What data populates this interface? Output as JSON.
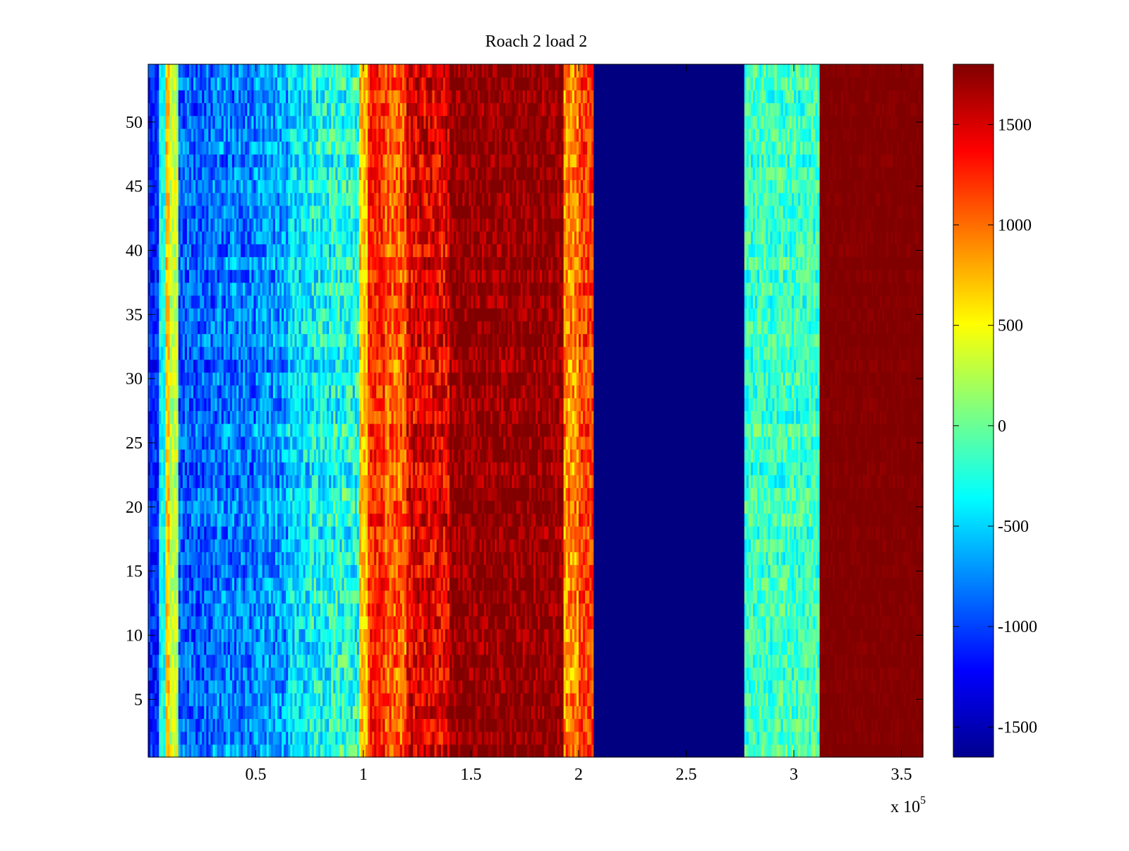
{
  "chart_data": {
    "type": "heatmap",
    "title": "Roach 2 load 2",
    "xlabel": "",
    "ylabel": "",
    "x_multiplier": "x 10",
    "x_multiplier_exponent": "5",
    "xlim": [
      0,
      360000
    ],
    "ylim": [
      0.5,
      54.5
    ],
    "x_ticks": [
      {
        "value": 50000,
        "label": "0.5"
      },
      {
        "value": 100000,
        "label": "1"
      },
      {
        "value": 150000,
        "label": "1.5"
      },
      {
        "value": 200000,
        "label": "2"
      },
      {
        "value": 250000,
        "label": "2.5"
      },
      {
        "value": 300000,
        "label": "3"
      },
      {
        "value": 350000,
        "label": "3.5"
      }
    ],
    "y_ticks": [
      {
        "value": 5,
        "label": "5"
      },
      {
        "value": 10,
        "label": "10"
      },
      {
        "value": 15,
        "label": "15"
      },
      {
        "value": 20,
        "label": "20"
      },
      {
        "value": 25,
        "label": "25"
      },
      {
        "value": 30,
        "label": "30"
      },
      {
        "value": 35,
        "label": "35"
      },
      {
        "value": 40,
        "label": "40"
      },
      {
        "value": 45,
        "label": "45"
      },
      {
        "value": 50,
        "label": "50"
      }
    ],
    "colorbar": {
      "colormap": "jet",
      "clim": [
        -1650,
        1800
      ],
      "ticks": [
        {
          "value": 1500,
          "label": "1500"
        },
        {
          "value": 1000,
          "label": "1000"
        },
        {
          "value": 500,
          "label": "500"
        },
        {
          "value": 0,
          "label": "0"
        },
        {
          "value": -500,
          "label": "-500"
        },
        {
          "value": -1000,
          "label": "-1000"
        },
        {
          "value": -1500,
          "label": "-1500"
        }
      ]
    },
    "rows": 54,
    "column_profile": [
      {
        "x_start": 0,
        "x_end": 5000,
        "value": -1100,
        "noise": 250
      },
      {
        "x_start": 5000,
        "x_end": 8000,
        "value": -300,
        "noise": 250
      },
      {
        "x_start": 8000,
        "x_end": 10000,
        "value": 700,
        "noise": 200
      },
      {
        "x_start": 10000,
        "x_end": 14000,
        "value": 300,
        "noise": 250
      },
      {
        "x_start": 14000,
        "x_end": 30000,
        "value": -900,
        "noise": 350
      },
      {
        "x_start": 30000,
        "x_end": 50000,
        "value": -800,
        "noise": 350
      },
      {
        "x_start": 50000,
        "x_end": 65000,
        "value": -700,
        "noise": 350
      },
      {
        "x_start": 65000,
        "x_end": 75000,
        "value": -450,
        "noise": 350
      },
      {
        "x_start": 75000,
        "x_end": 85000,
        "value": -300,
        "noise": 400
      },
      {
        "x_start": 85000,
        "x_end": 98000,
        "value": -250,
        "noise": 400
      },
      {
        "x_start": 98000,
        "x_end": 102000,
        "value": 700,
        "noise": 250
      },
      {
        "x_start": 102000,
        "x_end": 110000,
        "value": 1250,
        "noise": 300
      },
      {
        "x_start": 110000,
        "x_end": 120000,
        "value": 1050,
        "noise": 350
      },
      {
        "x_start": 120000,
        "x_end": 140000,
        "value": 1450,
        "noise": 350
      },
      {
        "x_start": 140000,
        "x_end": 193000,
        "value": 1750,
        "noise": 250
      },
      {
        "x_start": 193000,
        "x_end": 200000,
        "value": 900,
        "noise": 350
      },
      {
        "x_start": 200000,
        "x_end": 207000,
        "value": 1150,
        "noise": 300
      },
      {
        "x_start": 207000,
        "x_end": 277000,
        "value": -1650,
        "noise": 0
      },
      {
        "x_start": 277000,
        "x_end": 312000,
        "value": -150,
        "noise": 300
      },
      {
        "x_start": 312000,
        "x_end": 360000,
        "value": 1800,
        "noise": 60
      }
    ]
  }
}
